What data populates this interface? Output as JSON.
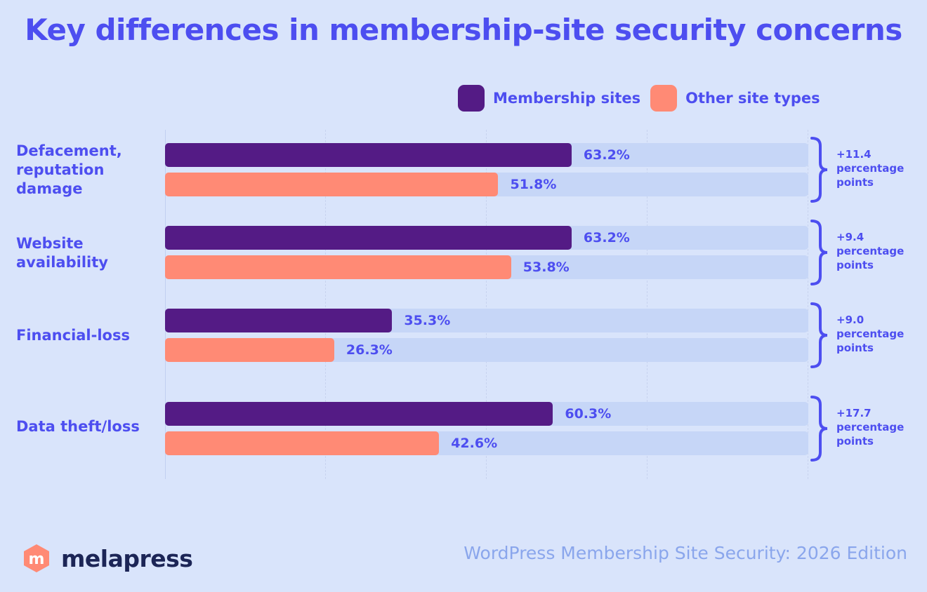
{
  "title": "Key differences in membership-site security concerns",
  "legend": [
    {
      "label": "Membership sites",
      "color": "#541b85"
    },
    {
      "label": "Other site types",
      "color": "#ff8a75"
    }
  ],
  "chart_data": {
    "type": "bar",
    "orientation": "horizontal",
    "categories": [
      "Defacement, reputation damage",
      "Website availability",
      "Financial-loss",
      "Data theft/loss"
    ],
    "series": [
      {
        "name": "Membership sites",
        "values": [
          63.2,
          63.2,
          35.3,
          60.3
        ],
        "labels": [
          "63.2%",
          "63.2%",
          "35.3%",
          "60.3%"
        ]
      },
      {
        "name": "Other site types",
        "values": [
          51.8,
          53.8,
          26.3,
          42.6
        ],
        "labels": [
          "51.8%",
          "53.8%",
          "26.3%",
          "42.6%"
        ]
      }
    ],
    "differences": [
      [
        "+11.4",
        "percentage",
        "points"
      ],
      [
        "+9.4",
        "percentage",
        "points"
      ],
      [
        "+9.0",
        "percentage",
        "points"
      ],
      [
        "+17.7",
        "percentage",
        "points"
      ]
    ],
    "xlim": [
      0,
      100
    ],
    "legend_position": "top-right"
  },
  "brand": {
    "name": "melapress",
    "mark_letter": "m"
  },
  "source": "WordPress Membership Site Security: 2026 Edition"
}
